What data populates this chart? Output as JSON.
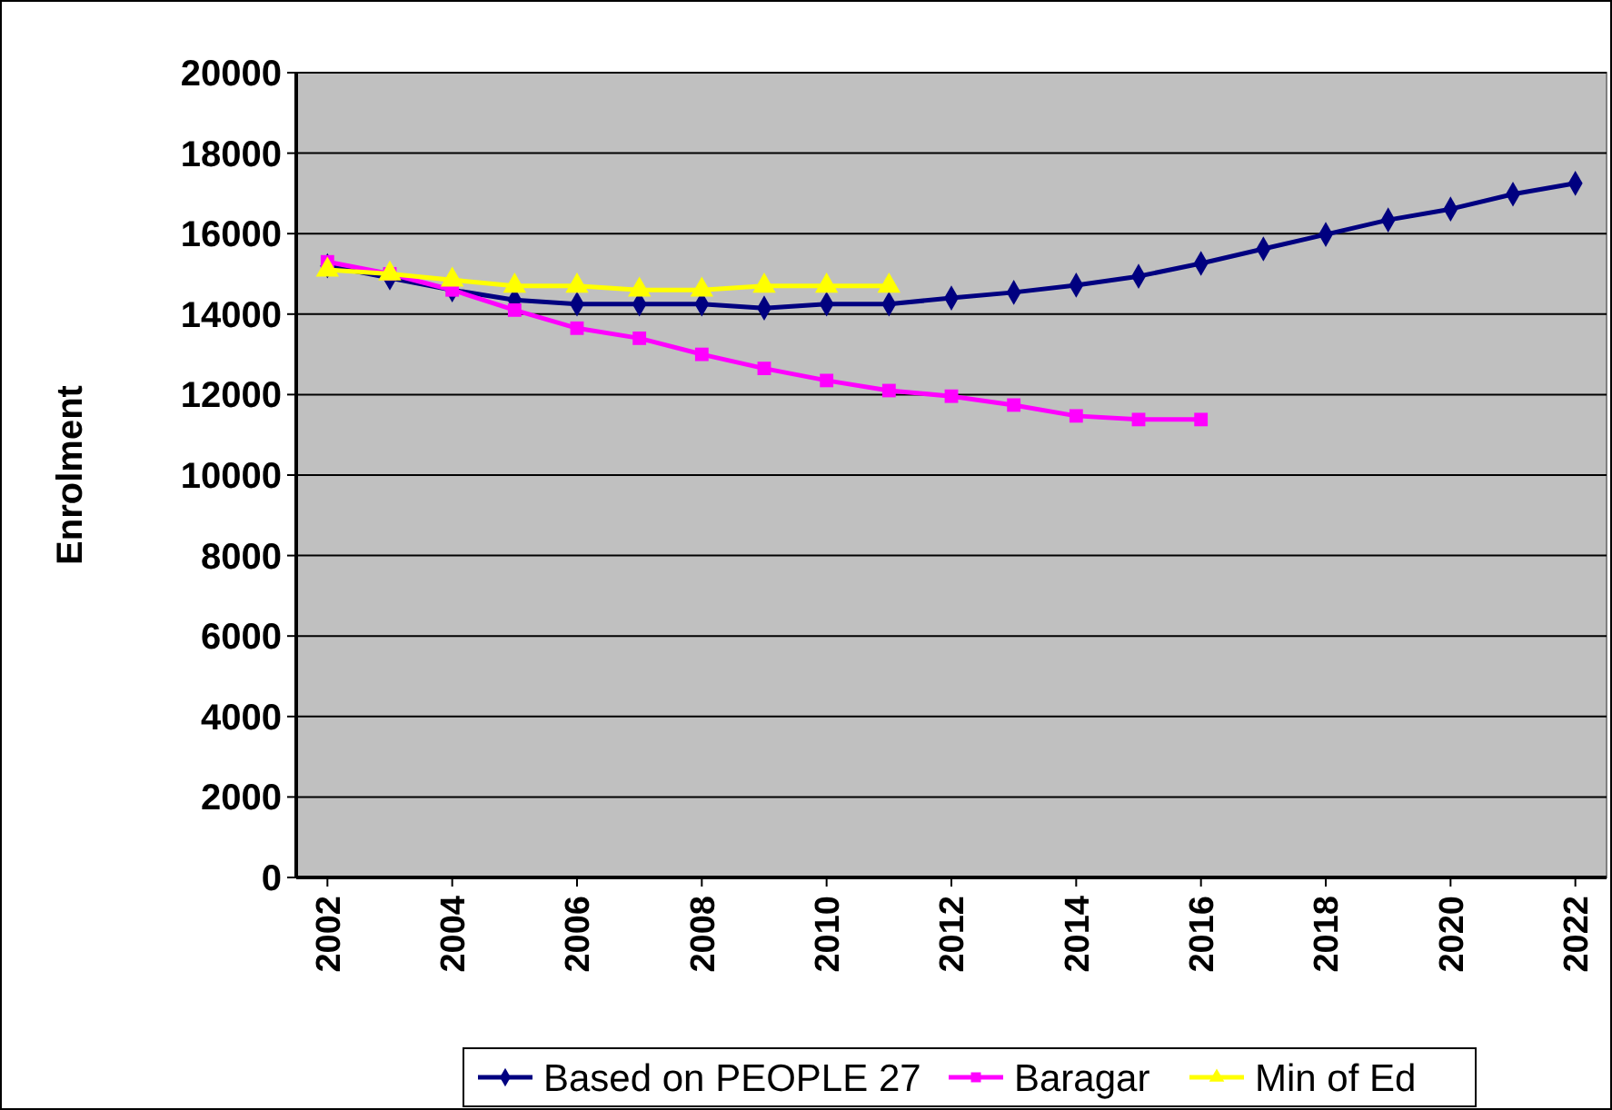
{
  "chart_data": {
    "type": "line",
    "ylabel": "Enrolment",
    "xlim": [
      2001.5,
      2022.5
    ],
    "xticks": [
      2002,
      2004,
      2006,
      2008,
      2010,
      2012,
      2014,
      2016,
      2018,
      2020,
      2022
    ],
    "ylim": [
      0,
      20000
    ],
    "yticks": [
      0,
      2000,
      4000,
      6000,
      8000,
      10000,
      12000,
      14000,
      16000,
      18000,
      20000
    ],
    "grid": "y",
    "legend": "bottom",
    "series": [
      {
        "name": "Based on PEOPLE 27",
        "color": "#000080",
        "marker": "diamond",
        "x": [
          2002,
          2003,
          2004,
          2005,
          2006,
          2007,
          2008,
          2009,
          2010,
          2011,
          2012,
          2013,
          2014,
          2015,
          2016,
          2017,
          2018,
          2019,
          2020,
          2021,
          2022
        ],
        "values": [
          15200,
          14900,
          14600,
          14350,
          14250,
          14250,
          14250,
          14150,
          14250,
          14250,
          14400,
          14540,
          14720,
          14940,
          15260,
          15620,
          15980,
          16340,
          16610,
          16980,
          17250
        ]
      },
      {
        "name": "Baragar",
        "color": "#ff00ff",
        "marker": "square",
        "x": [
          2002,
          2003,
          2004,
          2005,
          2006,
          2007,
          2008,
          2009,
          2010,
          2011,
          2012,
          2013,
          2014,
          2015,
          2016
        ],
        "values": [
          15300,
          15000,
          14600,
          14100,
          13650,
          13400,
          13000,
          12650,
          12350,
          12100,
          11960,
          11740,
          11470,
          11380,
          11380
        ]
      },
      {
        "name": "Min of Ed",
        "color": "#ffff00",
        "marker": "triangle",
        "x": [
          2002,
          2003,
          2004,
          2005,
          2006,
          2007,
          2008,
          2009,
          2010,
          2011
        ],
        "values": [
          15100,
          15000,
          14850,
          14700,
          14700,
          14600,
          14600,
          14700,
          14700,
          14700
        ]
      }
    ]
  }
}
